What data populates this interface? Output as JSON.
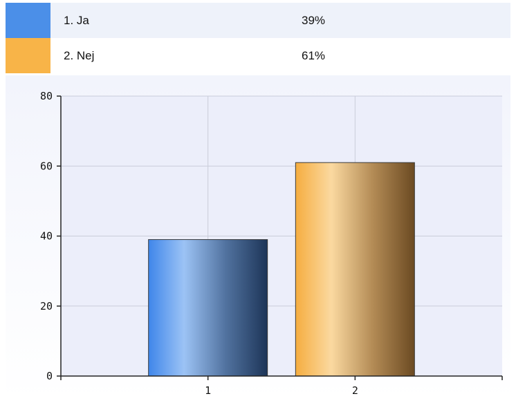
{
  "legend": [
    {
      "label": "1. Ja",
      "value": "39%",
      "color": "#4b8fe8"
    },
    {
      "label": "2. Nej",
      "value": "61%",
      "color": "#f8b448"
    }
  ],
  "chart_data": {
    "type": "bar",
    "categories": [
      "1",
      "2"
    ],
    "values": [
      39,
      61
    ],
    "ylim": [
      0,
      80
    ],
    "yticks": [
      "0",
      "20",
      "40",
      "60",
      "80"
    ],
    "grid": true,
    "colors": [
      "#4b8fe8",
      "#f8b448"
    ],
    "title": "",
    "xlabel": "",
    "ylabel": ""
  }
}
